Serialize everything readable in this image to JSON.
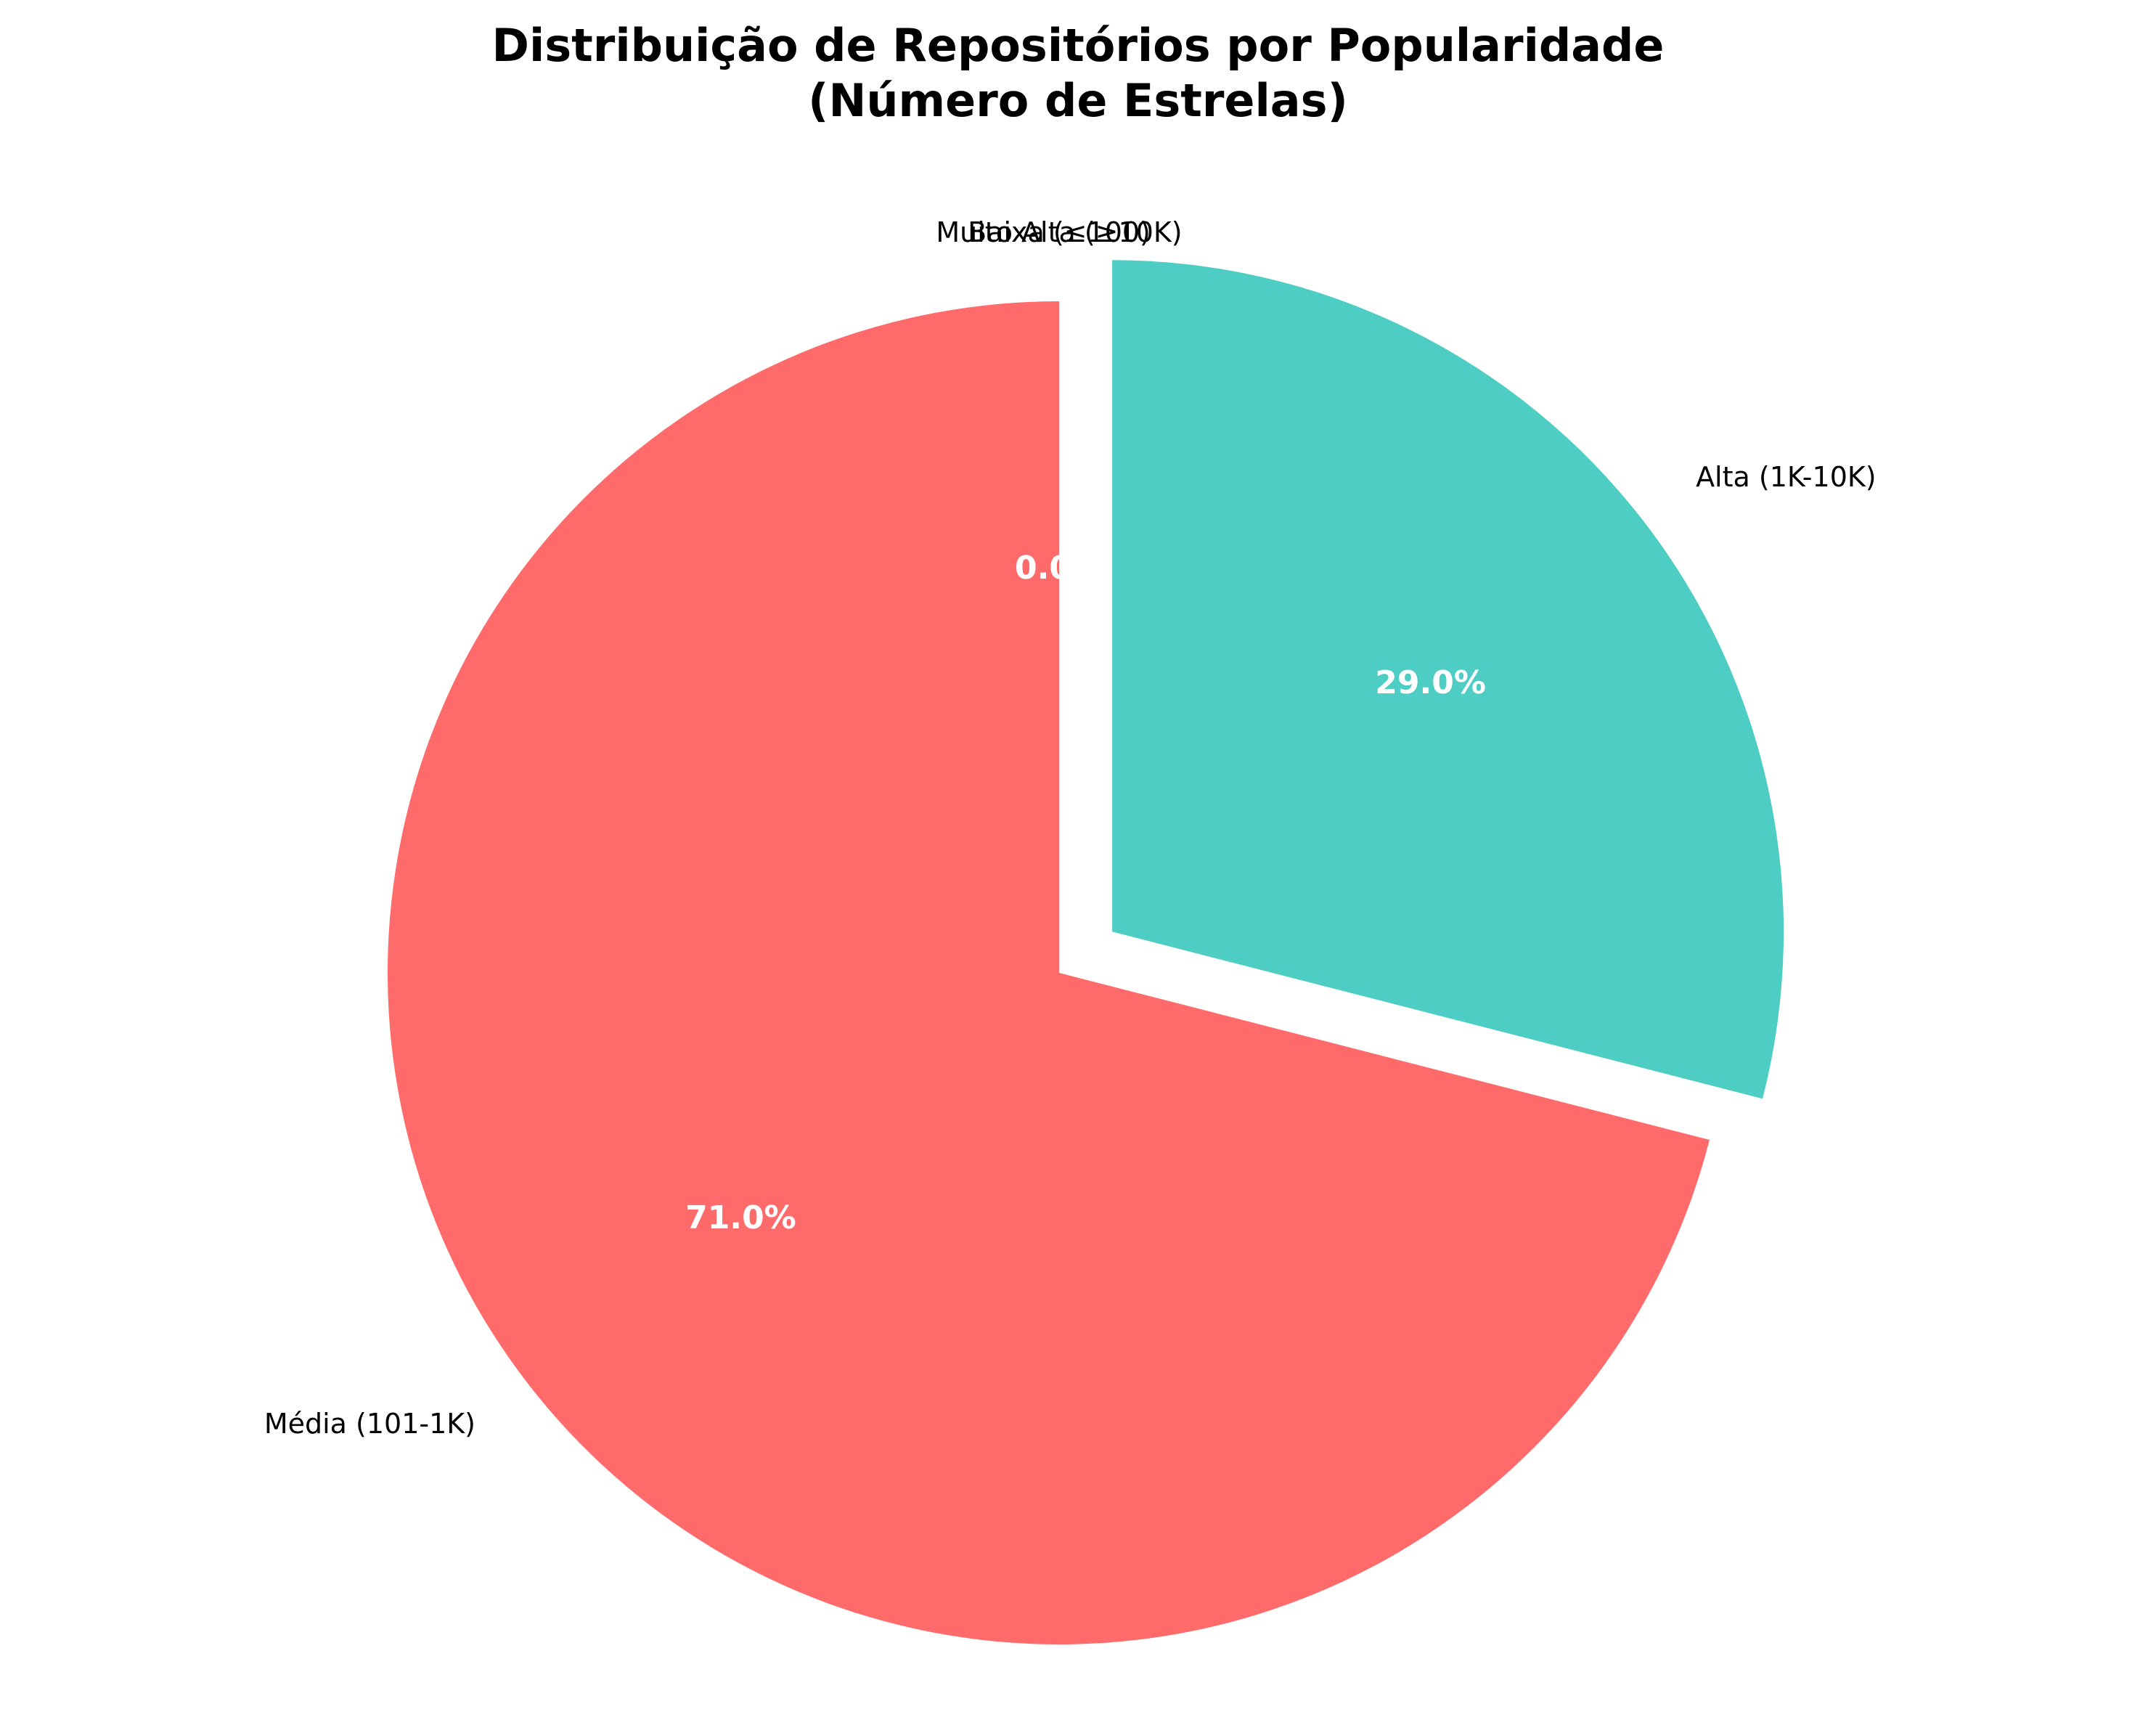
{
  "chart_data": {
    "type": "pie",
    "title": "Distribuição de Repositórios por Popularidade\n(Número de Estrelas)",
    "title_lines": [
      "Distribuição de Repositórios por Popularidade",
      "(Número de Estrelas)"
    ],
    "start_angle_deg": 90,
    "direction": "clockwise",
    "slices": [
      {
        "label": "Baixa (≤100)",
        "value": 0.0,
        "pct_label": "0.0%",
        "color": "#FF6B6B",
        "explode": 0.0
      },
      {
        "label": "Alta (1K-10K)",
        "value": 29.0,
        "pct_label": "29.0%",
        "color": "#4ECDC4",
        "explode": 0.1
      },
      {
        "label": "Média (101-1K)",
        "value": 71.0,
        "pct_label": "71.0%",
        "color": "#FF6B6B",
        "explode": 0.0
      },
      {
        "label": "Muito Alta (≥10K)",
        "value": 0.0,
        "pct_label": "0.0%",
        "color": "#FFA07A",
        "explode": 0.0
      }
    ]
  }
}
